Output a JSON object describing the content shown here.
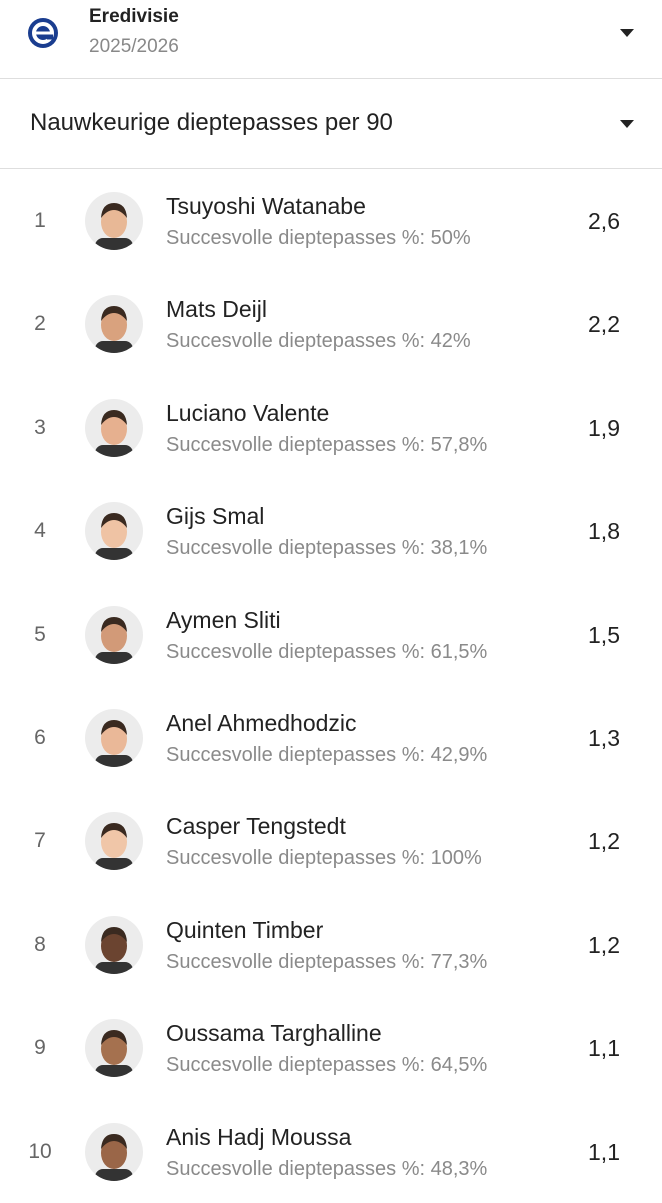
{
  "header": {
    "league": "Eredivisie",
    "season": "2025/2026"
  },
  "stat": {
    "title": "Nauwkeurige dieptepasses per 90"
  },
  "rows": [
    {
      "rank": 1,
      "name": "Tsuyoshi Watanabe",
      "detail": "Succesvolle dieptepasses %: 50%",
      "value": "2,6"
    },
    {
      "rank": 2,
      "name": "Mats Deijl",
      "detail": "Succesvolle dieptepasses %: 42%",
      "value": "2,2"
    },
    {
      "rank": 3,
      "name": "Luciano Valente",
      "detail": "Succesvolle dieptepasses %: 57,8%",
      "value": "1,9"
    },
    {
      "rank": 4,
      "name": "Gijs Smal",
      "detail": "Succesvolle dieptepasses %: 38,1%",
      "value": "1,8"
    },
    {
      "rank": 5,
      "name": "Aymen Sliti",
      "detail": "Succesvolle dieptepasses %: 61,5%",
      "value": "1,5"
    },
    {
      "rank": 6,
      "name": "Anel Ahmedhodzic",
      "detail": "Succesvolle dieptepasses %: 42,9%",
      "value": "1,3"
    },
    {
      "rank": 7,
      "name": "Casper Tengstedt",
      "detail": "Succesvolle dieptepasses %: 100%",
      "value": "1,2"
    },
    {
      "rank": 8,
      "name": "Quinten Timber",
      "detail": "Succesvolle dieptepasses %: 77,3%",
      "value": "1,2"
    },
    {
      "rank": 9,
      "name": "Oussama Targhalline",
      "detail": "Succesvolle dieptepasses %: 64,5%",
      "value": "1,1"
    },
    {
      "rank": 10,
      "name": "Anis Hadj Moussa",
      "detail": "Succesvolle dieptepasses %: 48,3%",
      "value": "1,1"
    }
  ]
}
